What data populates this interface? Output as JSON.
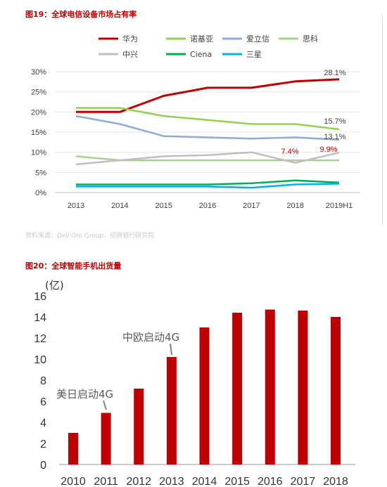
{
  "chart_data": [
    {
      "type": "line",
      "title": "图19：全球电信设备市场占有率",
      "x": [
        "2013",
        "2014",
        "2015",
        "2016",
        "2017",
        "2018",
        "2019H1"
      ],
      "ylim": [
        0,
        30
      ],
      "yticks": [
        "0%",
        "5%",
        "10%",
        "15%",
        "20%",
        "25%",
        "30%"
      ],
      "grid": true,
      "legend_position": "top",
      "series": [
        {
          "name": "华为",
          "color": "#c00000",
          "values": [
            20,
            20,
            24,
            26,
            26,
            27.6,
            28.1
          ]
        },
        {
          "name": "诺基亚",
          "color": "#92d050",
          "values": [
            21,
            21,
            19,
            18,
            17,
            17,
            15.7
          ]
        },
        {
          "name": "爱立信",
          "color": "#8faadc",
          "values": [
            19,
            17,
            14,
            13.7,
            13.4,
            13.7,
            13.1
          ]
        },
        {
          "name": "思科",
          "color": "#a9d18e",
          "values": [
            9,
            8,
            8,
            8,
            8,
            8,
            8
          ]
        },
        {
          "name": "中兴",
          "color": "#bfbfbf",
          "values": [
            7,
            8,
            9,
            9.3,
            10,
            7.4,
            9.9
          ]
        },
        {
          "name": "Ciena",
          "color": "#00b050",
          "values": [
            2,
            2,
            2,
            2,
            2.3,
            3,
            2.5
          ]
        },
        {
          "name": "三星",
          "color": "#00b0f0",
          "values": [
            1.5,
            1.5,
            1.5,
            1.5,
            1.2,
            2,
            2.2
          ]
        }
      ],
      "annotations": [
        {
          "text": "28.1%",
          "color": "#404040"
        },
        {
          "text": "15.7%",
          "color": "#404040"
        },
        {
          "text": "13.1%",
          "color": "#404040"
        },
        {
          "text": "7.4%",
          "color": "#c00000"
        },
        {
          "text": "9.9%",
          "color": "#c00000"
        }
      ]
    },
    {
      "type": "bar",
      "title": "图20：全球智能手机出货量",
      "categories": [
        "2010",
        "2011",
        "2012",
        "2013",
        "2014",
        "2015",
        "2016",
        "2017",
        "2018"
      ],
      "values": [
        3,
        4.9,
        7.2,
        10.2,
        13,
        14.4,
        14.7,
        14.6,
        14
      ],
      "ylim": [
        0,
        16
      ],
      "yticks": [
        "0",
        "2",
        "4",
        "6",
        "8",
        "10",
        "12",
        "14",
        "16"
      ],
      "ylabel": "(亿)",
      "color": "#c00000",
      "annotations": [
        {
          "text": "美日启动4G"
        },
        {
          "text": "中欧启动4G"
        }
      ]
    }
  ],
  "source_note": "资料来源：Dell'Oro Group、招商银行研究院"
}
